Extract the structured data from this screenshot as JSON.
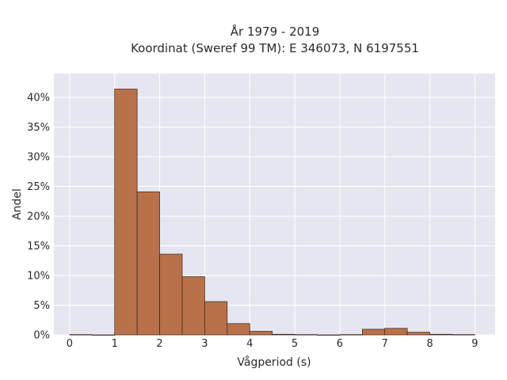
{
  "chart_data": {
    "type": "bar",
    "title": "År 1979 - 2019",
    "subtitle": "Koordinat (Sweref 99 TM): E 346073, N 6197551",
    "xlabel": "Vågperiod (s)",
    "ylabel": "Andel",
    "xlim": [
      -0.35,
      9.45
    ],
    "ylim": [
      0,
      0.44
    ],
    "x_ticks": [
      0,
      1,
      2,
      3,
      4,
      5,
      6,
      7,
      8,
      9
    ],
    "y_ticks": [
      0,
      0.05,
      0.1,
      0.15,
      0.2,
      0.25,
      0.3,
      0.35,
      0.4
    ],
    "y_tick_labels": [
      "0%",
      "5%",
      "10%",
      "15%",
      "20%",
      "25%",
      "30%",
      "35%",
      "40%"
    ],
    "bin_width": 0.5,
    "bins": [
      {
        "x0": 0.0,
        "value": 0.0005
      },
      {
        "x0": 0.5,
        "value": 0.0
      },
      {
        "x0": 1.0,
        "value": 0.414
      },
      {
        "x0": 1.5,
        "value": 0.241
      },
      {
        "x0": 2.0,
        "value": 0.136
      },
      {
        "x0": 2.5,
        "value": 0.098
      },
      {
        "x0": 3.0,
        "value": 0.056
      },
      {
        "x0": 3.5,
        "value": 0.019
      },
      {
        "x0": 4.0,
        "value": 0.006
      },
      {
        "x0": 4.5,
        "value": 0.001
      },
      {
        "x0": 5.0,
        "value": 0.0005
      },
      {
        "x0": 5.5,
        "value": 0.0
      },
      {
        "x0": 6.0,
        "value": 0.0005
      },
      {
        "x0": 6.5,
        "value": 0.0095
      },
      {
        "x0": 7.0,
        "value": 0.011
      },
      {
        "x0": 7.5,
        "value": 0.0045
      },
      {
        "x0": 8.0,
        "value": 0.001
      },
      {
        "x0": 8.5,
        "value": 0.0005
      }
    ],
    "grid": true,
    "colors": {
      "bar_fill": "#b8714a",
      "bar_stroke": "#3d2417",
      "plot_bg": "#e6e6f0",
      "grid": "#ffffff"
    }
  }
}
